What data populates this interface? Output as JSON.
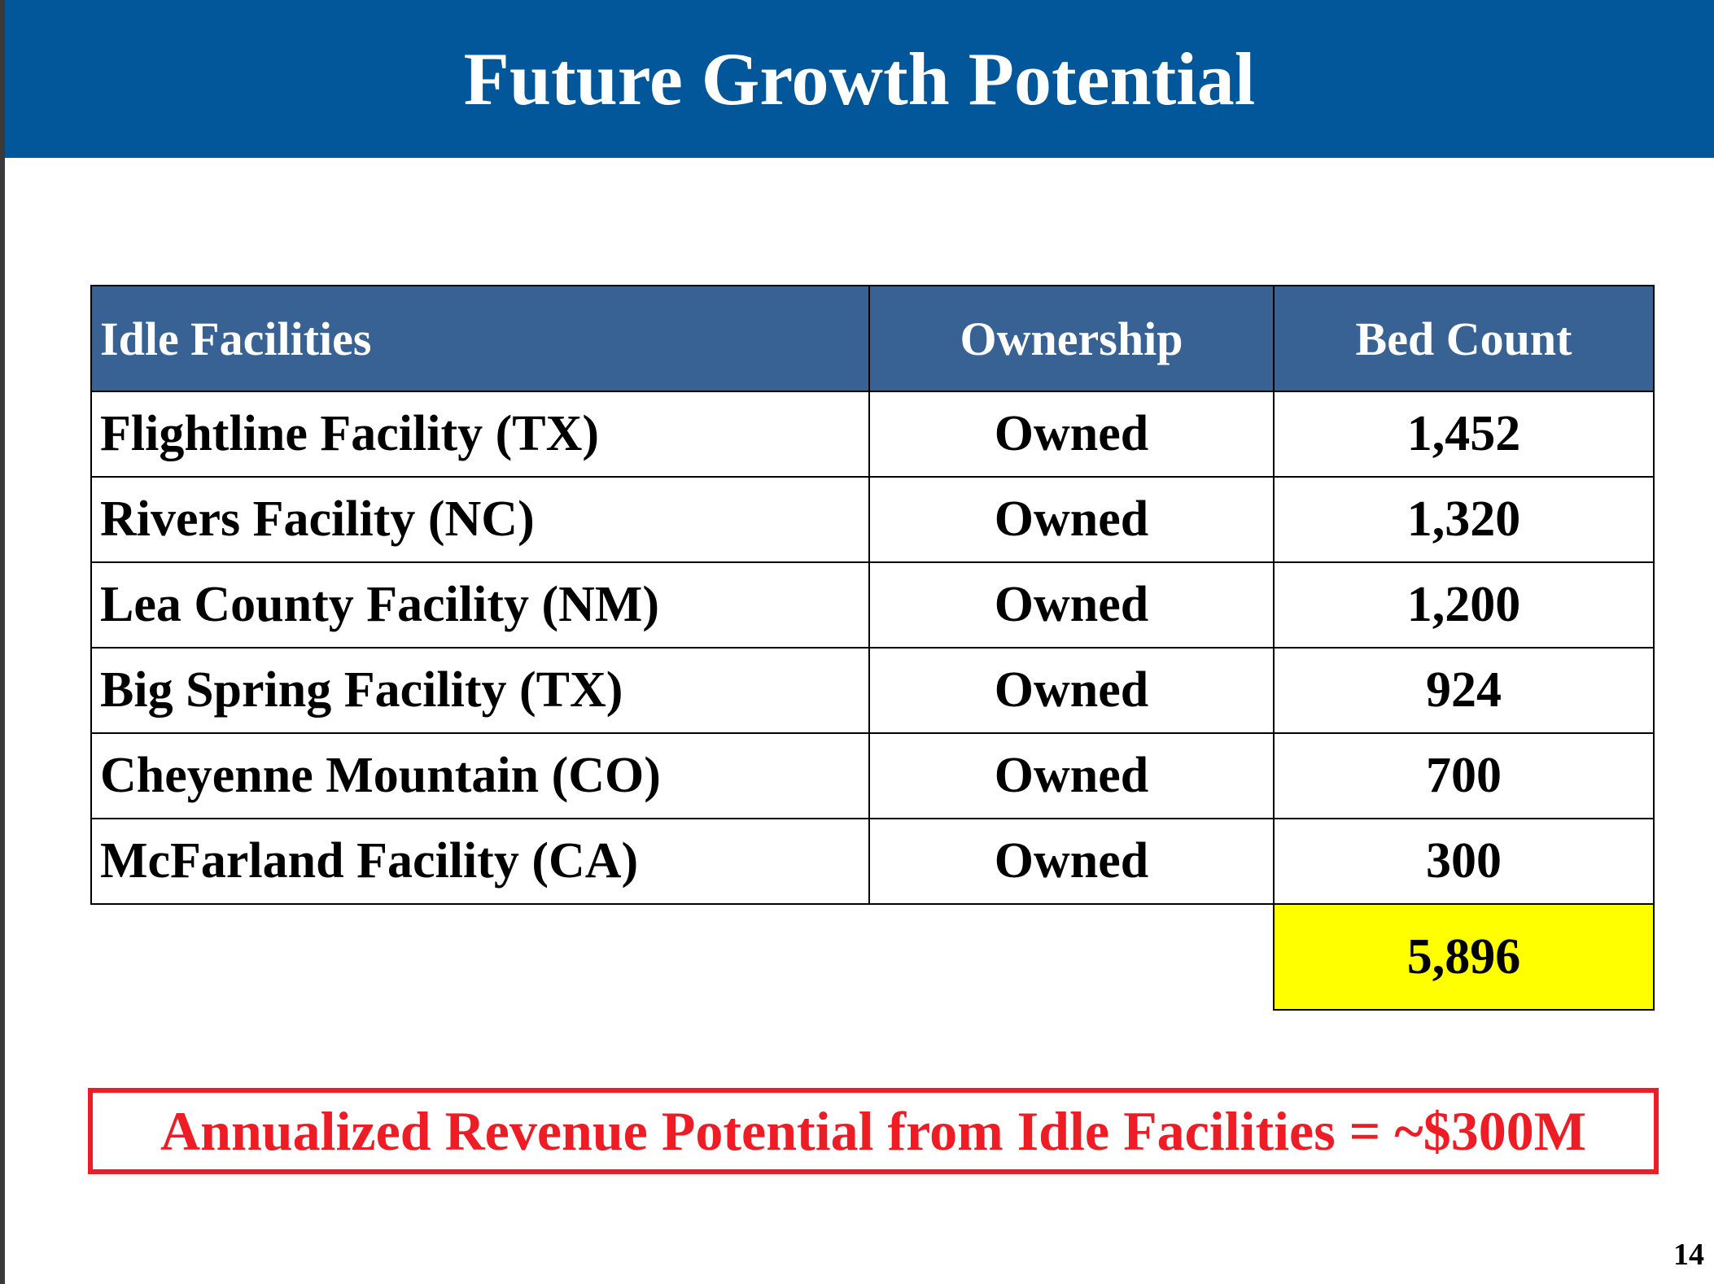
{
  "slide": {
    "title": "Future Growth Potential",
    "page_number": "14"
  },
  "table": {
    "headers": {
      "facility": "Idle Facilities",
      "ownership": "Ownership",
      "bed_count": "Bed Count"
    },
    "rows": [
      {
        "facility": "Flightline Facility (TX)",
        "ownership": "Owned",
        "bed_count": "1,452"
      },
      {
        "facility": "Rivers Facility (NC)",
        "ownership": "Owned",
        "bed_count": "1,320"
      },
      {
        "facility": "Lea County Facility (NM)",
        "ownership": "Owned",
        "bed_count": "1,200"
      },
      {
        "facility": "Big Spring Facility (TX)",
        "ownership": "Owned",
        "bed_count": "924"
      },
      {
        "facility": "Cheyenne Mountain (CO)",
        "ownership": "Owned",
        "bed_count": "700"
      },
      {
        "facility": "McFarland Facility (CA)",
        "ownership": "Owned",
        "bed_count": "300"
      }
    ],
    "total_bed_count": "5,896"
  },
  "callout": {
    "text": "Annualized Revenue Potential from Idle Facilities = ~$300M"
  },
  "colors": {
    "title_bar": "#02569a",
    "header_fill": "#386294",
    "total_highlight": "#ffff00",
    "callout_red": "#ee1c25"
  }
}
